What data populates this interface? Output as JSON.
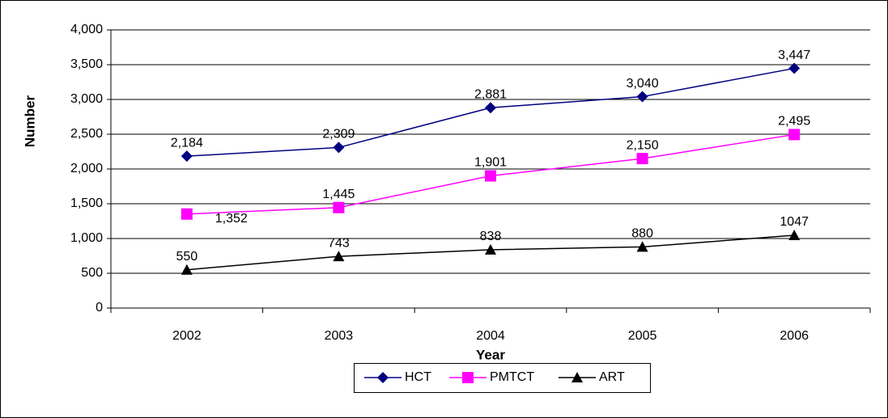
{
  "chart_data": {
    "type": "line",
    "x_label": "Year",
    "y_label": "Number",
    "categories": [
      "2002",
      "2003",
      "2004",
      "2005",
      "2006"
    ],
    "series": [
      {
        "name": "HCT",
        "color": "#000080",
        "marker": "diamond",
        "values": [
          2184,
          2309,
          2881,
          3040,
          3447
        ],
        "value_labels": [
          "2,184",
          "2,309",
          "2,881",
          "3,040",
          "3,447"
        ]
      },
      {
        "name": "PMTCT",
        "color": "#ff00ff",
        "marker": "square",
        "values": [
          1352,
          1445,
          1901,
          2150,
          2495
        ],
        "value_labels": [
          "1,352",
          "1,445",
          "1,901",
          "2,150",
          "2,495"
        ]
      },
      {
        "name": "ART",
        "color": "#000000",
        "marker": "triangle",
        "values": [
          550,
          743,
          838,
          880,
          1047
        ]
      }
    ],
    "ylim": [
      0,
      4000
    ],
    "yticks": [
      0,
      500,
      {
        "value": 1000,
        "label": "1,000"
      },
      {
        "value": 1500,
        "label": "1,500"
      },
      {
        "value": 2000,
        "label": "2,000"
      },
      {
        "value": 2500,
        "label": "2,500"
      },
      {
        "value": 3000,
        "label": "3,000"
      },
      {
        "value": 3500,
        "label": "3,500"
      },
      {
        "value": 4000,
        "label": "4,000"
      }
    ],
    "grid": true,
    "legend": "bottom"
  }
}
